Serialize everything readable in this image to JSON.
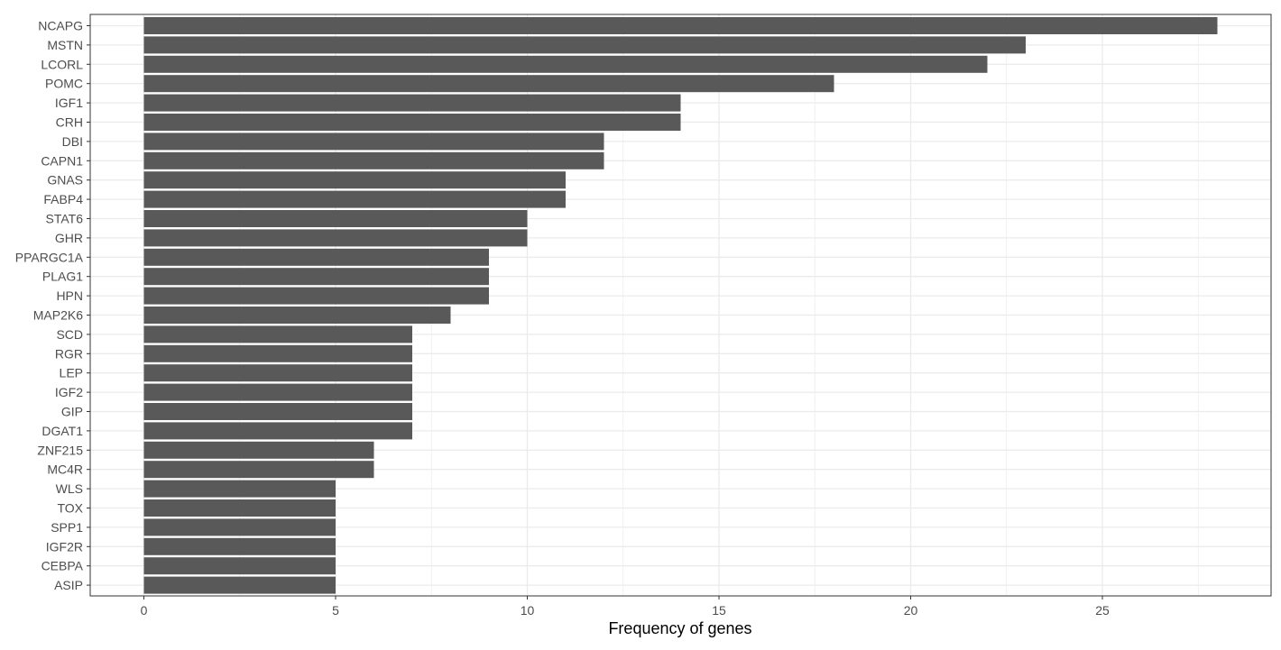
{
  "chart_data": {
    "type": "bar",
    "orientation": "horizontal",
    "title": "",
    "xlabel": "Frequency of genes",
    "ylabel": "",
    "xlim": [
      -1.4,
      29.4
    ],
    "xticks": [
      0,
      5,
      10,
      15,
      20,
      25
    ],
    "grid": true,
    "legend": "none",
    "bar_color": "#595959",
    "categories": [
      "NCAPG",
      "MSTN",
      "LCORL",
      "POMC",
      "IGF1",
      "CRH",
      "DBI",
      "CAPN1",
      "GNAS",
      "FABP4",
      "STAT6",
      "GHR",
      "PPARGC1A",
      "PLAG1",
      "HPN",
      "MAP2K6",
      "SCD",
      "RGR",
      "LEP",
      "IGF2",
      "GIP",
      "DGAT1",
      "ZNF215",
      "MC4R",
      "WLS",
      "TOX",
      "SPP1",
      "IGF2R",
      "CEBPA",
      "ASIP"
    ],
    "values": [
      28,
      23,
      22,
      18,
      14,
      14,
      12,
      12,
      11,
      11,
      10,
      10,
      9,
      9,
      9,
      8,
      7,
      7,
      7,
      7,
      7,
      7,
      6,
      6,
      5,
      5,
      5,
      5,
      5,
      5
    ]
  }
}
